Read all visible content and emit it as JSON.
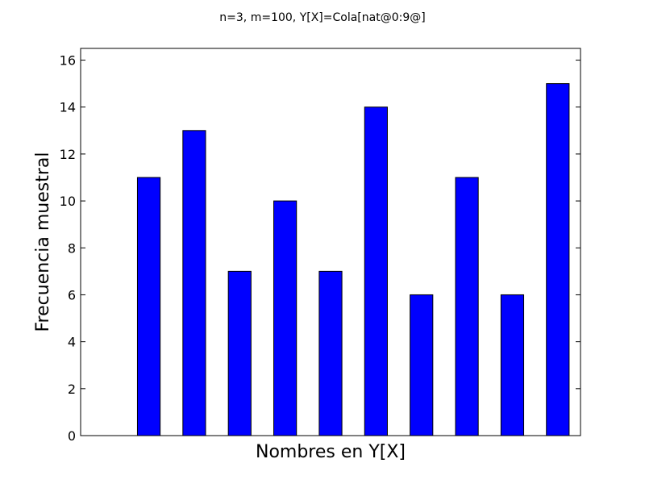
{
  "chart_data": {
    "type": "bar",
    "title": "n=3, m=100, Y[X]=Cola[nat@0:9@]",
    "xlabel": "Nombres en Y[X]",
    "ylabel": "Frecuencia muestral",
    "values": [
      11,
      13,
      7,
      10,
      7,
      14,
      6,
      11,
      6,
      15
    ],
    "ylim": [
      0,
      16.5
    ],
    "yticks": [
      0,
      2,
      4,
      6,
      8,
      10,
      12,
      14,
      16
    ],
    "bar_color": "#0000ff",
    "grid": false
  }
}
